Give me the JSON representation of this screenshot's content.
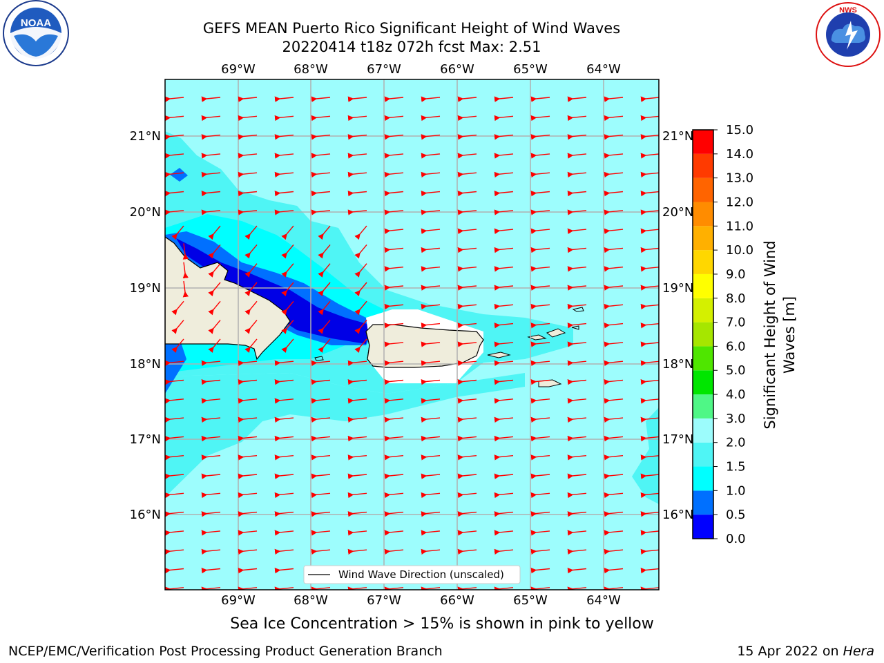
{
  "title": {
    "line1": "GEFS MEAN Puerto Rico Significant Height of Wind Waves",
    "line2": "20220414 t18z 072h fcst   Max: 2.51"
  },
  "axes": {
    "lon_labels": [
      "69°W",
      "68°W",
      "67°W",
      "66°W",
      "65°W",
      "64°W"
    ],
    "lat_labels": [
      "21°N",
      "20°N",
      "19°N",
      "18°N",
      "17°N",
      "16°N"
    ]
  },
  "legend": {
    "label": "Wind Wave Direction (unscaled)"
  },
  "colorbar": {
    "title": "Significant Height of Wind Waves [m]",
    "title_line1": "Significant Height of Wind",
    "title_line2": "Waves [m]",
    "ticks": [
      "15.0",
      "14.0",
      "13.0",
      "12.0",
      "11.0",
      "10.0",
      "9.0",
      "8.0",
      "7.0",
      "6.0",
      "5.0",
      "4.0",
      "3.0",
      "2.0",
      "1.5",
      "1.0",
      "0.5",
      "0.0"
    ],
    "colors": [
      "#0000ff",
      "#0070ff",
      "#00ffff",
      "#4ff5f5",
      "#9cfcfc",
      "#4ff786",
      "#00e600",
      "#4fe600",
      "#a6e600",
      "#d4f000",
      "#ffff00",
      "#ffd700",
      "#ffb000",
      "#ff8c00",
      "#ff6400",
      "#ff3a00",
      "#ff0000"
    ]
  },
  "palette": {
    "sea_light": "#9dfdfd",
    "sea_mid": "#4ff5f5",
    "sea_cyan": "#00ffff",
    "sea_blue": "#0070ff",
    "sea_deep": "#0000e6",
    "land": "#efeddc",
    "arrow": "#ff0000"
  },
  "footer": {
    "ice_note": "Sea Ice Concentration > 15% is shown in pink to yellow",
    "credit": "NCEP/EMC/Verification Post Processing Product Generation Branch",
    "date": "15 Apr 2022 on",
    "machine": "Hera"
  },
  "logos": {
    "noaa": "NOAA",
    "nws": "NATIONAL WEATHER SERVICE"
  }
}
